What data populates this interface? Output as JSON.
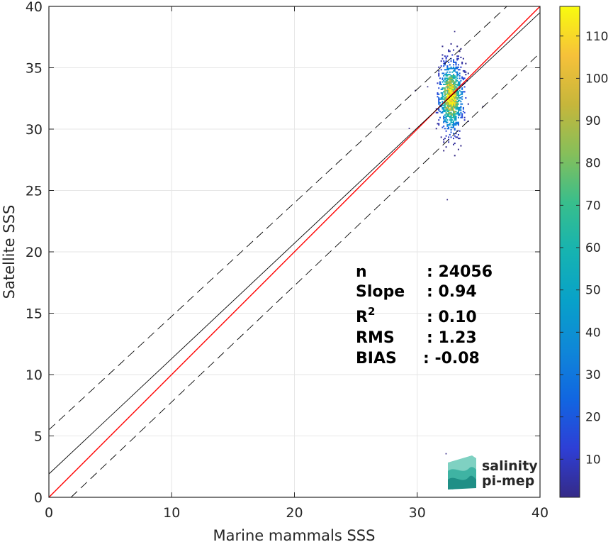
{
  "chart_data": {
    "type": "heatmap",
    "title": "",
    "xlabel": "Marine mammals SSS",
    "ylabel": "Satellite SSS",
    "xlim": [
      0,
      40
    ],
    "ylim": [
      0,
      40
    ],
    "x_ticks": [
      "0",
      "10",
      "20",
      "30",
      "40"
    ],
    "y_ticks": [
      "0",
      "5",
      "10",
      "15",
      "20",
      "25",
      "30",
      "35",
      "40"
    ],
    "grid": true,
    "density_cloud": {
      "x_center": 32.7,
      "y_center": 32.6,
      "x_range": [
        31.5,
        34.2
      ],
      "y_range": [
        24.2,
        38.2
      ],
      "peak_count": 115
    },
    "lines": [
      {
        "name": "one-to-one",
        "color": "#ff0000",
        "x": [
          0,
          40
        ],
        "y": [
          0,
          40
        ]
      },
      {
        "name": "regression",
        "color": "#000000",
        "x": [
          0,
          40
        ],
        "y": [
          1.9,
          39.5
        ]
      },
      {
        "name": "upper-bound",
        "color": "#000000",
        "style": "dashed",
        "x": [
          0,
          37.3
        ],
        "y": [
          5.5,
          40
        ]
      },
      {
        "name": "lower-bound",
        "color": "#000000",
        "style": "dashed",
        "x": [
          1.8,
          40
        ],
        "y": [
          0,
          36.2
        ]
      }
    ],
    "colorbar": {
      "min": 1,
      "max": 117,
      "ticks": [
        "10",
        "20",
        "30",
        "40",
        "50",
        "60",
        "70",
        "80",
        "90",
        "100",
        "110"
      ],
      "colormap": "parula"
    },
    "stats": [
      {
        "label": "n",
        "value": ": 24056"
      },
      {
        "label": "Slope",
        "value": ": 0.94"
      },
      {
        "label": "R",
        "sup": "2",
        "value": ": 0.10"
      },
      {
        "label": "RMS",
        "value": ": 1.23"
      },
      {
        "label": "BIAS",
        "value": ": -0.08"
      }
    ]
  },
  "logo": {
    "line1": "salinity",
    "line2": "pi-mep",
    "color1": "#2aa89a",
    "color2": "#1f6f73"
  }
}
